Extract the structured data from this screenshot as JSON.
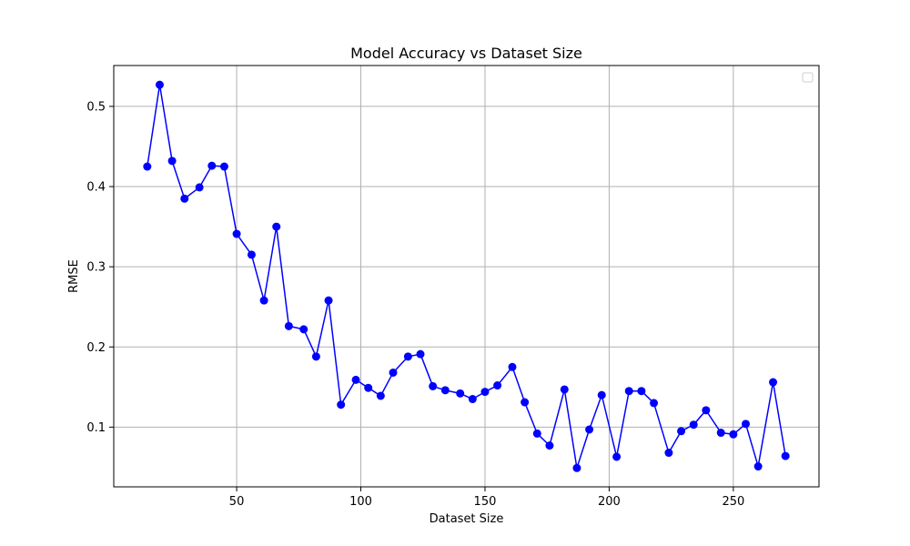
{
  "chart_data": {
    "type": "line",
    "title": "Model Accuracy vs Dataset Size",
    "xlabel": "Dataset Size",
    "ylabel": "RMSE",
    "xlim": [
      0.5,
      284.5
    ],
    "ylim": [
      0.0255,
      0.551
    ],
    "xticks": [
      50,
      100,
      150,
      200,
      250
    ],
    "yticks": [
      0.1,
      0.2,
      0.3,
      0.4,
      0.5
    ],
    "xtick_labels": [
      "50",
      "100",
      "150",
      "200",
      "250"
    ],
    "ytick_labels": [
      "0.1",
      "0.2",
      "0.3",
      "0.4",
      "0.5"
    ],
    "grid": true,
    "legend": {
      "placement": "top-right",
      "entries": []
    },
    "series": [
      {
        "color": "#0000ff",
        "marker": "circle",
        "x": [
          14,
          19,
          24,
          29,
          35,
          40,
          45,
          50,
          56,
          61,
          66,
          71,
          77,
          82,
          87,
          92,
          98,
          103,
          108,
          113,
          119,
          124,
          129,
          134,
          140,
          145,
          150,
          155,
          161,
          166,
          171,
          176,
          182,
          187,
          192,
          197,
          203,
          208,
          213,
          218,
          224,
          229,
          234,
          239,
          245,
          250,
          255,
          260,
          266,
          271
        ],
        "y": [
          0.425,
          0.527,
          0.432,
          0.385,
          0.399,
          0.426,
          0.425,
          0.341,
          0.315,
          0.258,
          0.35,
          0.226,
          0.222,
          0.188,
          0.258,
          0.128,
          0.159,
          0.149,
          0.139,
          0.168,
          0.188,
          0.191,
          0.151,
          0.146,
          0.142,
          0.135,
          0.144,
          0.152,
          0.175,
          0.131,
          0.092,
          0.077,
          0.147,
          0.049,
          0.097,
          0.14,
          0.063,
          0.145,
          0.145,
          0.13,
          0.068,
          0.095,
          0.103,
          0.121,
          0.093,
          0.091,
          0.104,
          0.051,
          0.156,
          0.064
        ]
      }
    ]
  }
}
